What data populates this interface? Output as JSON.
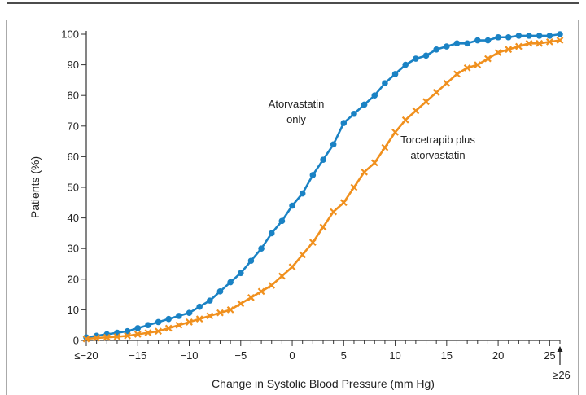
{
  "chart_data": {
    "type": "line",
    "title": "",
    "xlabel": "Change in Systolic Blood Pressure (mm Hg)",
    "ylabel": "Patients (%)",
    "xlim": [
      -20,
      26
    ],
    "ylim": [
      0,
      100
    ],
    "x_ticks": [
      -20,
      -15,
      -10,
      -5,
      0,
      5,
      10,
      15,
      20,
      25
    ],
    "x_tick_labels": [
      "≤−20",
      "−15",
      "−10",
      "−5",
      "0",
      "5",
      "10",
      "15",
      "20",
      "25"
    ],
    "y_ticks": [
      0,
      10,
      20,
      30,
      40,
      50,
      60,
      70,
      80,
      90,
      100
    ],
    "y_tick_labels": [
      "0",
      "10",
      "20",
      "30",
      "40",
      "50",
      "60",
      "70",
      "80",
      "90",
      "100"
    ],
    "extra_x_label": "≥26",
    "grid": false,
    "legend": "none",
    "series": [
      {
        "name": "Atorvastatin only",
        "color": "#1a82c4",
        "marker": "circle",
        "x": [
          -20,
          -19,
          -18,
          -17,
          -16,
          -15,
          -14,
          -13,
          -12,
          -11,
          -10,
          -9,
          -8,
          -7,
          -6,
          -5,
          -4,
          -3,
          -2,
          -1,
          0,
          1,
          2,
          3,
          4,
          5,
          6,
          7,
          8,
          9,
          10,
          11,
          12,
          13,
          14,
          15,
          16,
          17,
          18,
          19,
          20,
          21,
          22,
          23,
          24,
          25,
          26
        ],
        "values": [
          1,
          1.5,
          2,
          2.5,
          3,
          4,
          5,
          6,
          7,
          8,
          9,
          11,
          13,
          16,
          19,
          22,
          26,
          30,
          35,
          39,
          44,
          48,
          54,
          59,
          64,
          71,
          74,
          77,
          80,
          84,
          87,
          90,
          92,
          93,
          95,
          96,
          97,
          97,
          98,
          98,
          99,
          99,
          99.5,
          99.5,
          99.5,
          99.5,
          100
        ]
      },
      {
        "name": "Torcetrapib plus atorvastatin",
        "color": "#f0901e",
        "marker": "x",
        "x": [
          -20,
          -19,
          -18,
          -17,
          -16,
          -15,
          -14,
          -13,
          -12,
          -11,
          -10,
          -9,
          -8,
          -7,
          -6,
          -5,
          -4,
          -3,
          -2,
          -1,
          0,
          1,
          2,
          3,
          4,
          5,
          6,
          7,
          8,
          9,
          10,
          11,
          12,
          13,
          14,
          15,
          16,
          17,
          18,
          19,
          20,
          21,
          22,
          23,
          24,
          25,
          26
        ],
        "values": [
          0.5,
          0.8,
          1,
          1.2,
          1.5,
          2,
          2.5,
          3,
          4,
          5,
          6,
          7,
          8,
          9,
          10,
          12,
          14,
          16,
          18,
          21,
          24,
          28,
          32,
          37,
          42,
          45,
          50,
          55,
          58,
          63,
          68,
          72,
          75,
          78,
          81,
          84,
          87,
          89,
          90,
          92,
          94,
          95,
          96,
          97,
          97,
          97.5,
          98
        ]
      }
    ],
    "annotations": [
      {
        "series": 0,
        "lines": [
          "Atorvastatin",
          "only"
        ]
      },
      {
        "series": 1,
        "lines": [
          "Torcetrapib plus",
          "atorvastatin"
        ]
      }
    ]
  }
}
